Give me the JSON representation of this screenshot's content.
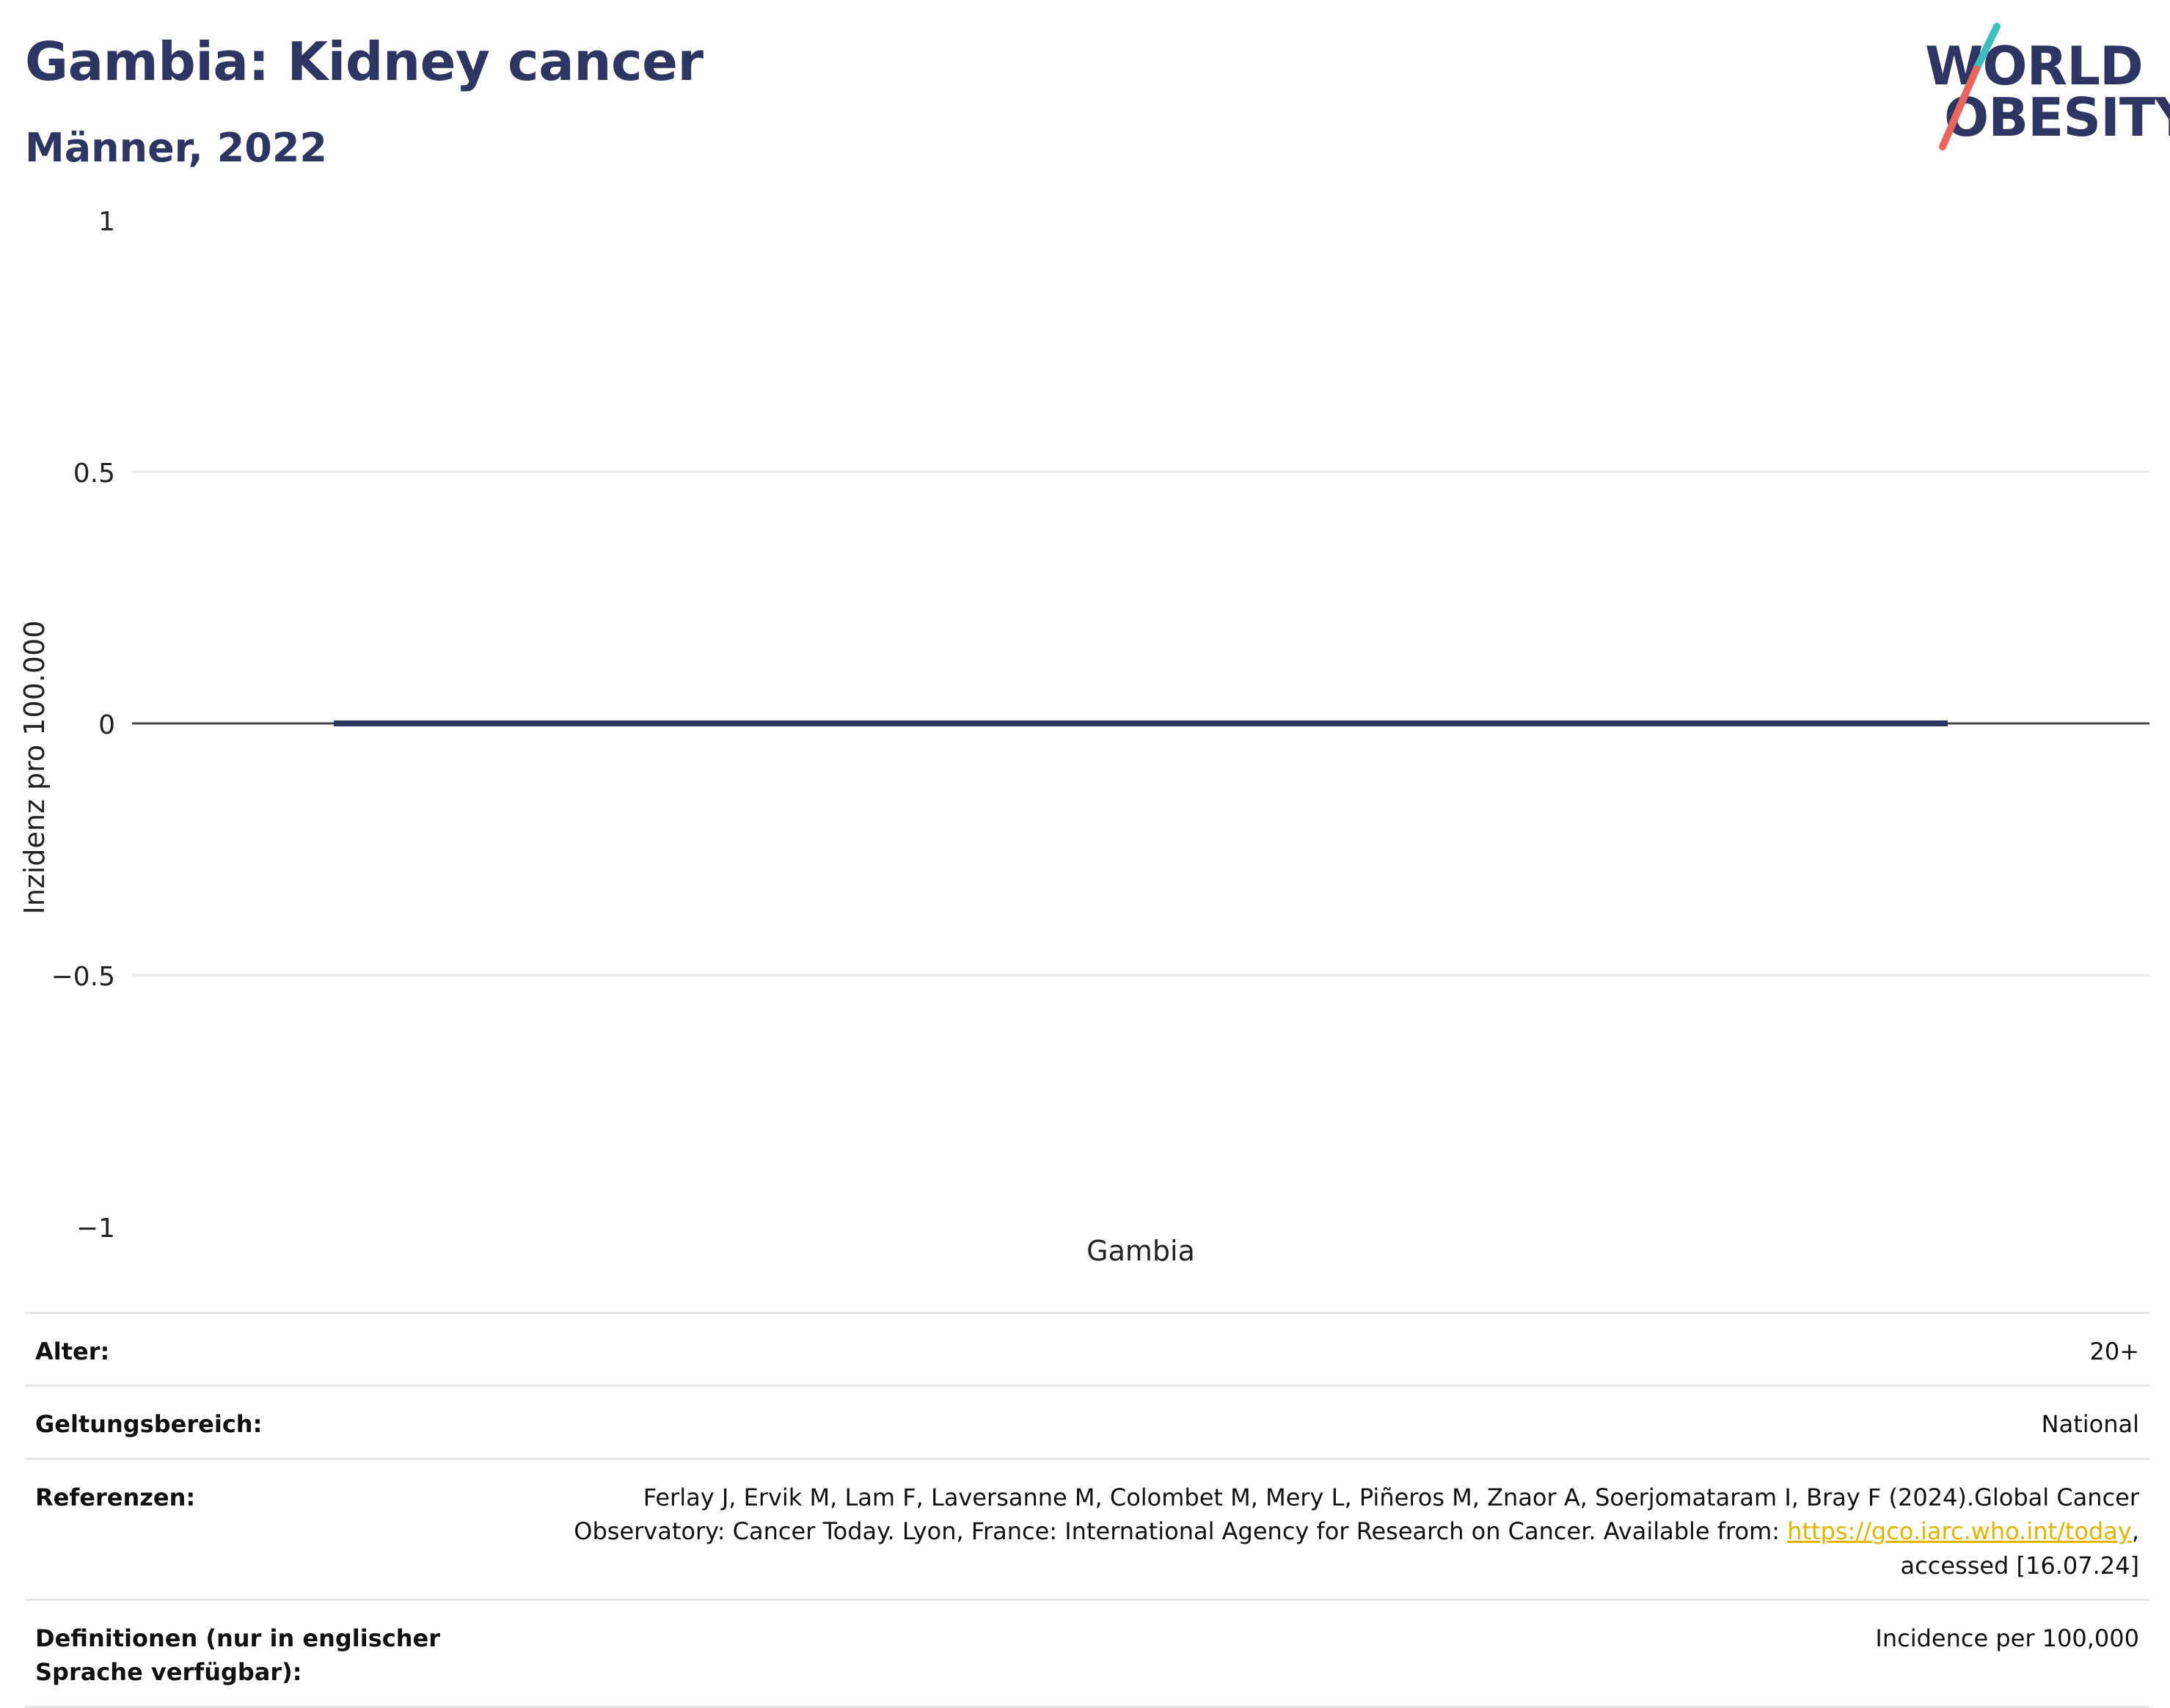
{
  "header": {
    "title": "Gambia: Kidney cancer",
    "subtitle": "Männer, 2022"
  },
  "logo": {
    "line1": "WORLD",
    "line2": "OBESITY",
    "colors": {
      "text": "#2d3563",
      "slash_top": "#3bbfbf",
      "slash_bottom": "#e8675a"
    }
  },
  "chart_data": {
    "type": "bar",
    "categories": [
      "Gambia"
    ],
    "series": [
      {
        "values": [
          0
        ]
      }
    ],
    "ylabel": "Inzidenz pro 100.000",
    "xlabel": "",
    "ylim": [
      -1,
      1
    ],
    "yticks": [
      1,
      0.5,
      0,
      -0.5,
      -1
    ],
    "ytick_labels": [
      "1",
      "0.5",
      "0",
      "−0.5",
      "−1"
    ],
    "grid": true,
    "bar_color": "#2d3563"
  },
  "meta": {
    "rows": [
      {
        "label": "Alter:",
        "value": "20+"
      },
      {
        "label": "Geltungsbereich:",
        "value": "National"
      },
      {
        "label": "Referenzen:",
        "value_before": "Ferlay J, Ervik M, Lam F, Laversanne M, Colombet M, Mery L, Piñeros M, Znaor A, Soerjomataram I, Bray F (2024).Global Cancer Observatory: Cancer Today. Lyon, France: International Agency for Research on Cancer. Available from: ",
        "link": "https://gco.iarc.who.int/today",
        "value_after": ", accessed [16.07.24]"
      },
      {
        "label": "Definitionen (nur in englischer Sprache verfügbar):",
        "value": "Incidence per 100,000"
      }
    ]
  }
}
